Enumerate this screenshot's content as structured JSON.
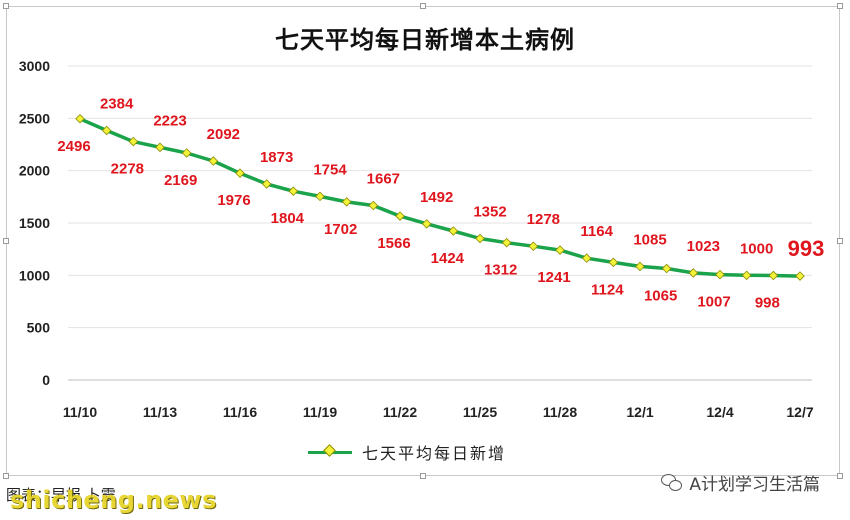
{
  "chart_data": {
    "type": "line",
    "title": "七天平均每日新增本土病例",
    "xlabel": "",
    "ylabel": "",
    "ylim": [
      0,
      3000
    ],
    "yticks": [
      0,
      500,
      1000,
      1500,
      2000,
      2500,
      3000
    ],
    "xtick_labels": [
      "11/10",
      "11/13",
      "11/16",
      "11/19",
      "11/22",
      "11/25",
      "11/28",
      "12/1",
      "12/4",
      "12/7"
    ],
    "grid": "horizontal",
    "legend_position": "bottom",
    "series": [
      {
        "name": "七天平均每日新增",
        "color": "#1aa34a",
        "marker_color": "#f2f23a",
        "values": [
          2496,
          2384,
          2278,
          2223,
          2169,
          2092,
          1976,
          1873,
          1804,
          1754,
          1702,
          1667,
          1566,
          1492,
          1424,
          1352,
          1312,
          1278,
          1241,
          1164,
          1124,
          1085,
          1065,
          1023,
          1007,
          1000,
          998,
          993
        ]
      }
    ],
    "label_color": "#e0161e"
  },
  "source_text": "图表：早报  卜震",
  "site_logo": "shicheng.news",
  "watermark": "A计划学习生活篇",
  "watermark_icon": "wechat-icon"
}
